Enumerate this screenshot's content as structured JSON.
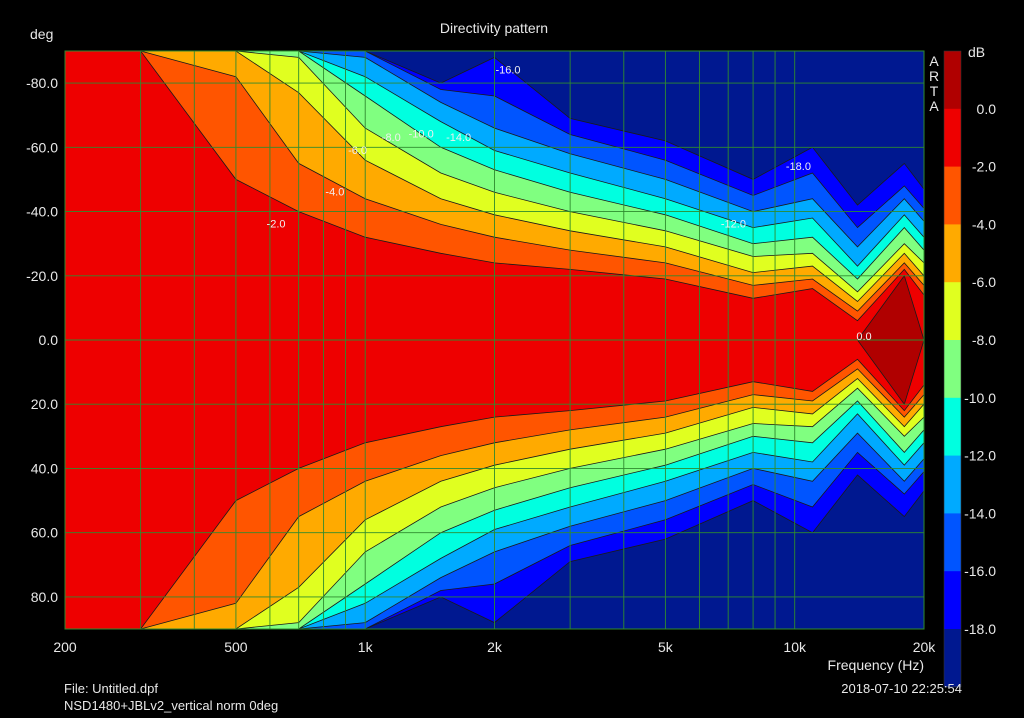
{
  "chart_data": {
    "type": "heatmap",
    "title": "Directivity pattern",
    "xlabel": "Frequency (Hz)",
    "ylabel": "deg",
    "colorbar_label": "dB",
    "brand": "ARTA",
    "x_scale": "log",
    "xlim": [
      200,
      20000
    ],
    "ylim": [
      -90,
      90
    ],
    "x_ticks": [
      200,
      500,
      1000,
      2000,
      5000,
      10000,
      20000
    ],
    "x_tick_labels": [
      "200",
      "500",
      "1k",
      "2k",
      "5k",
      "10k",
      "20k"
    ],
    "y_ticks": [
      -80,
      -60,
      -40,
      -20,
      0,
      20,
      40,
      60,
      80
    ],
    "y_tick_labels": [
      "-80.0",
      "-60.0",
      "-40.0",
      "-20.0",
      "0.0",
      "20.0",
      "40.0",
      "60.0",
      "80.0"
    ],
    "x_grid": [
      200,
      300,
      400,
      500,
      600,
      700,
      800,
      900,
      1000,
      2000,
      3000,
      4000,
      5000,
      6000,
      7000,
      8000,
      9000,
      10000,
      20000
    ],
    "y_grid": [
      -80,
      -60,
      -40,
      -20,
      0,
      20,
      40,
      60,
      80
    ],
    "grid": true,
    "levels": [
      0.0,
      -2.0,
      -4.0,
      -6.0,
      -8.0,
      -10.0,
      -12.0,
      -14.0,
      -16.0,
      -18.0
    ],
    "level_labels": [
      "0.0",
      "-2.0",
      "-4.0",
      "-6.0",
      "-8.0",
      "-10.0",
      "-12.0",
      "-14.0",
      "-16.0",
      "-18.0"
    ],
    "colors": [
      "#b00000",
      "#ee0000",
      "#ff5500",
      "#ffaa00",
      "#e0ff20",
      "#80ff80",
      "#00ffe0",
      "#00aaff",
      "#0055ff",
      "#0000ff",
      "#001890"
    ],
    "contour_labels": [
      {
        "text": "-16.0",
        "freq": 2150,
        "deg": -83
      },
      {
        "text": "-14.0",
        "freq": 1650,
        "deg": -62
      },
      {
        "text": "-10.0",
        "freq": 1350,
        "deg": -63
      },
      {
        "text": "-8.0",
        "freq": 1150,
        "deg": -62
      },
      {
        "text": "-6.0",
        "freq": 960,
        "deg": -58
      },
      {
        "text": "-4.0",
        "freq": 850,
        "deg": -45
      },
      {
        "text": "-2.0",
        "freq": 620,
        "deg": -35
      },
      {
        "text": "-12.0",
        "freq": 7200,
        "deg": -35
      },
      {
        "text": "-18.0",
        "freq": 10200,
        "deg": -53
      },
      {
        "text": "0.0",
        "freq": 14500,
        "deg": 0
      }
    ],
    "half_width_deg": [
      {
        "freq": 200,
        "levels": [
          0,
          90,
          90,
          90,
          90,
          90,
          90,
          90,
          90,
          90
        ]
      },
      {
        "freq": 300,
        "levels": [
          0,
          90,
          90,
          90,
          90,
          90,
          90,
          90,
          90,
          90
        ]
      },
      {
        "freq": 500,
        "levels": [
          0,
          50,
          82,
          90,
          90,
          90,
          90,
          90,
          90,
          90
        ]
      },
      {
        "freq": 700,
        "levels": [
          0,
          40,
          55,
          77,
          88,
          90,
          90,
          90,
          90,
          90
        ]
      },
      {
        "freq": 1000,
        "levels": [
          0,
          32,
          44,
          56,
          66,
          76,
          82,
          88,
          90,
          90
        ]
      },
      {
        "freq": 1500,
        "levels": [
          0,
          27,
          36,
          44,
          52,
          60,
          68,
          74,
          78,
          80
        ]
      },
      {
        "freq": 2000,
        "levels": [
          0,
          24,
          32,
          39,
          46,
          53,
          59,
          66,
          76,
          88
        ]
      },
      {
        "freq": 3000,
        "levels": [
          0,
          22,
          28,
          34,
          40,
          46,
          52,
          58,
          64,
          69
        ]
      },
      {
        "freq": 5000,
        "levels": [
          0,
          19,
          24,
          29,
          34,
          39,
          44,
          50,
          56,
          62
        ]
      },
      {
        "freq": 8000,
        "levels": [
          0,
          13,
          17,
          21,
          26,
          30,
          35,
          40,
          45,
          50
        ]
      },
      {
        "freq": 11000,
        "levels": [
          0,
          16,
          19,
          23,
          27,
          32,
          38,
          44,
          52,
          60
        ]
      },
      {
        "freq": 14000,
        "levels": [
          0,
          6,
          9,
          12,
          15,
          19,
          23,
          29,
          35,
          42
        ]
      },
      {
        "freq": 18000,
        "levels": [
          20,
          22,
          24,
          27,
          30,
          35,
          39,
          44,
          48,
          55
        ]
      },
      {
        "freq": 20000,
        "levels": [
          0,
          14,
          17,
          20,
          24,
          28,
          32,
          37,
          41,
          47
        ]
      }
    ]
  },
  "footer": {
    "file": "File: Untitled.dpf",
    "measurement": "NSD1480+JBLv2_vertical norm 0deg",
    "timestamp": "2018-07-10  22:25:54"
  }
}
